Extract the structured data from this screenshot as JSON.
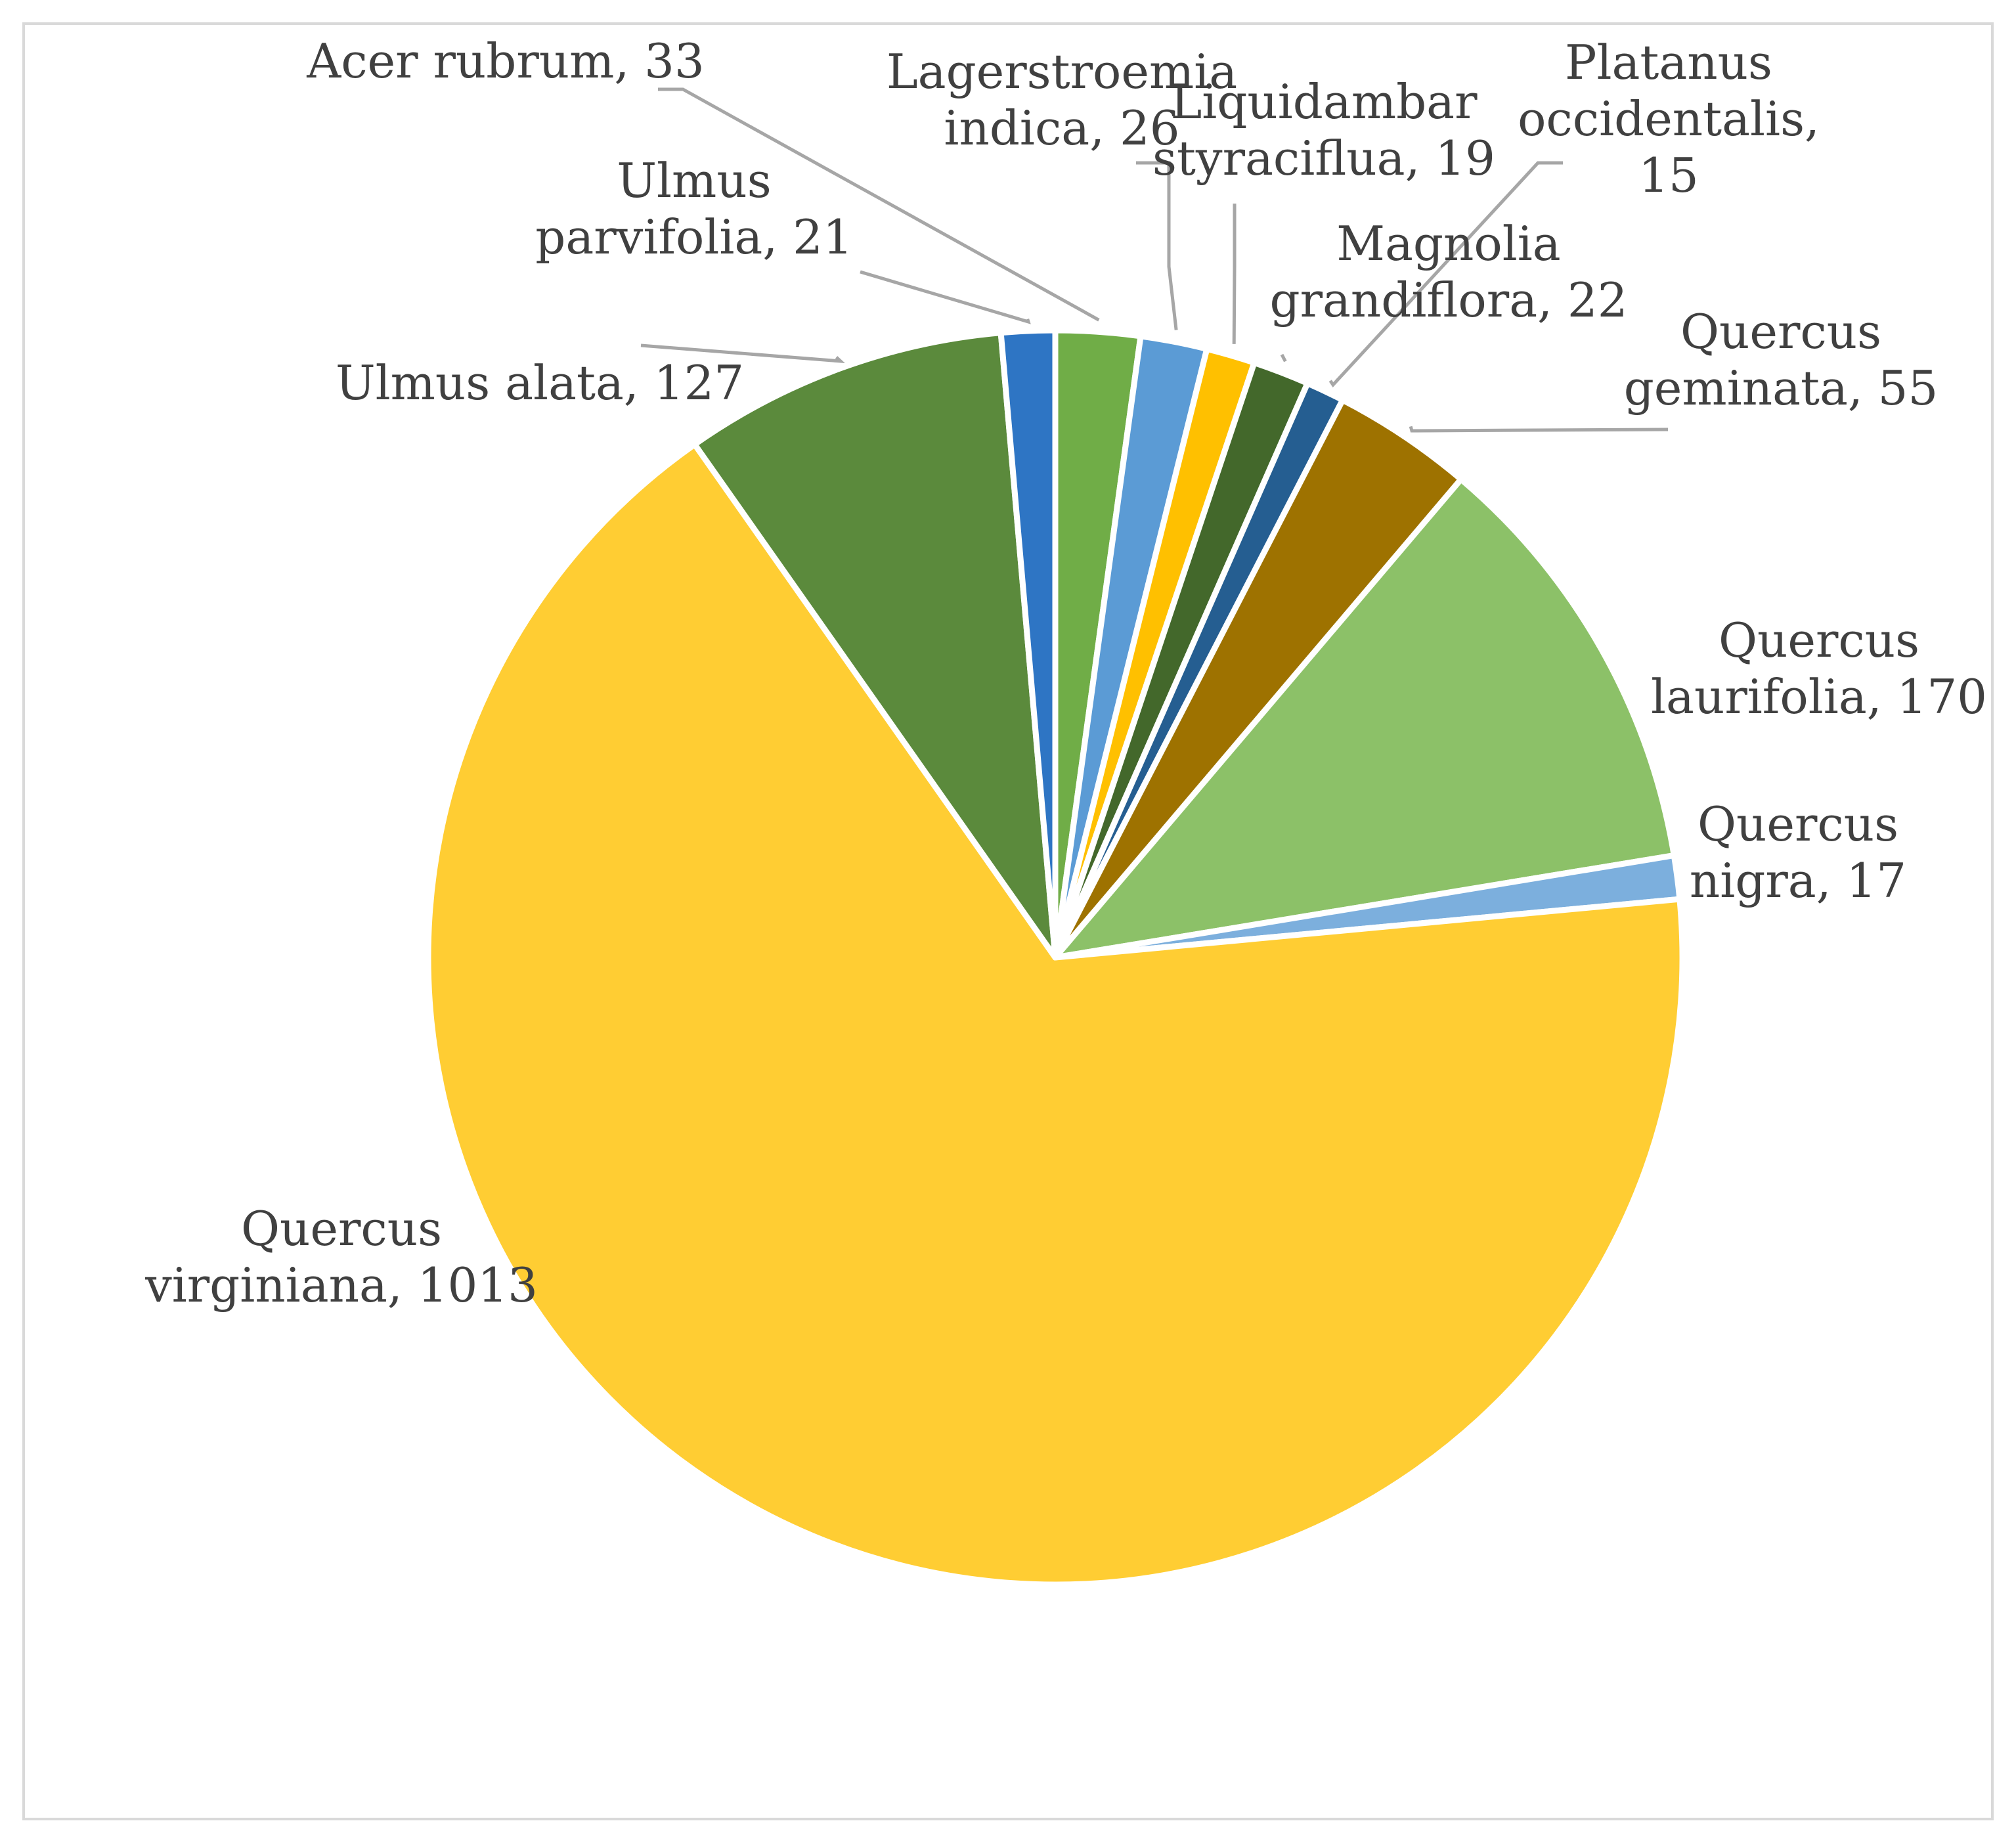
{
  "chart_data": {
    "type": "pie",
    "title": "",
    "label_color": "#404040",
    "leader_color": "#a6a6a6",
    "slices": [
      {
        "name": "Acer rubrum",
        "value": 33,
        "label": "Acer rubrum, 33",
        "color": "#70ad47",
        "label_lines": [
          "Acer rubrum, 33"
        ]
      },
      {
        "name": "Lagerstroemia indica",
        "value": 26,
        "label": "Lagerstroemia indica, 26",
        "color": "#5b9bd5",
        "label_lines": [
          "Lagerstroemia",
          "indica, 26"
        ]
      },
      {
        "name": "Liquidambar styraciflua",
        "value": 19,
        "label": "Liquidambar styraciflua, 19",
        "color": "#ffc000",
        "label_lines": [
          "Liquidambar",
          "styraciflua, 19"
        ]
      },
      {
        "name": "Magnolia grandiflora",
        "value": 22,
        "label": "Magnolia grandiflora, 22",
        "color": "#43682b",
        "label_lines": [
          "Magnolia",
          "grandiflora, 22"
        ]
      },
      {
        "name": "Platanus occidentalis",
        "value": 15,
        "label": "Platanus occidentalis, 15",
        "color": "#255e91",
        "label_lines": [
          "Platanus",
          "occidentalis,",
          "15"
        ]
      },
      {
        "name": "Quercus geminata",
        "value": 55,
        "label": "Quercus geminata, 55",
        "color": "#9e7200",
        "label_lines": [
          "Quercus",
          "geminata, 55"
        ]
      },
      {
        "name": "Quercus laurifolia",
        "value": 170,
        "label": "Quercus laurifolia, 170",
        "color": "#8cc168",
        "label_lines": [
          "Quercus",
          "laurifolia, 170"
        ]
      },
      {
        "name": "Quercus nigra",
        "value": 17,
        "label": "Quercus nigra, 17",
        "color": "#7cafdd",
        "label_lines": [
          "Quercus",
          "nigra, 17"
        ]
      },
      {
        "name": "Quercus virginiana",
        "value": 1013,
        "label": "Quercus virginiana, 1013",
        "color": "#ffcd33",
        "label_lines": [
          "Quercus",
          "virginiana, 1013"
        ]
      },
      {
        "name": "Ulmus alata",
        "value": 127,
        "label": "Ulmus alata, 127",
        "color": "#5b8a3c",
        "label_lines": [
          "Ulmus alata, 127"
        ]
      },
      {
        "name": "Ulmus parvifolia",
        "value": 21,
        "label": "Ulmus parvifolia, 21",
        "color": "#2e75c4",
        "label_lines": [
          "Ulmus",
          "parvifolia, 21"
        ]
      }
    ]
  }
}
